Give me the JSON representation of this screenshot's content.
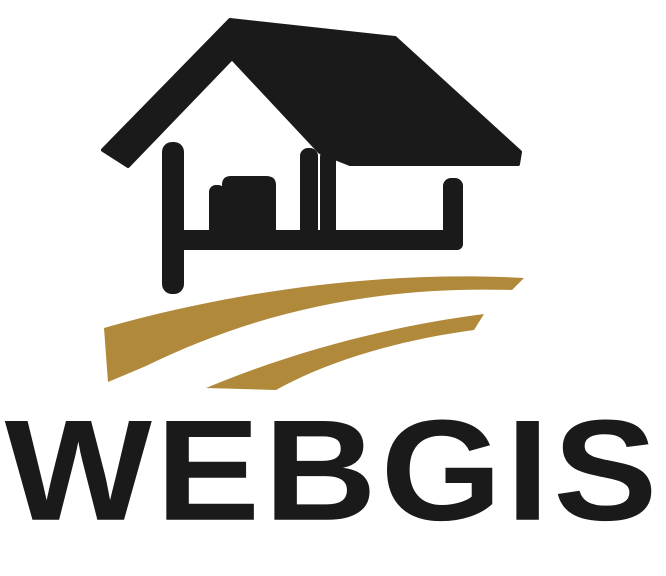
{
  "logo": {
    "wordmark": "WEBGIS",
    "icon": "house-on-field-icon",
    "colors": {
      "dark": "#1a1a1a",
      "gold": "#b0893b",
      "background": "#ffffff"
    }
  }
}
